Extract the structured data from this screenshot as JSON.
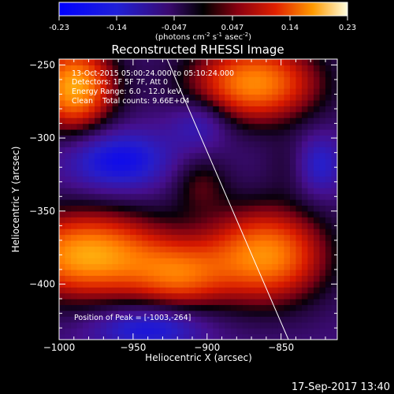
{
  "colorbar": {
    "ticks": [
      "-0.23",
      "-0.14",
      "-0.047",
      "0.047",
      "0.14",
      "0.23"
    ],
    "unit_main": "(photons cm",
    "unit_exp1": "-2",
    "unit_s": " s",
    "unit_exp2": "-1",
    "unit_asec": " asec",
    "unit_exp3": "-2",
    "unit_close": ")"
  },
  "annotations": {
    "line1": "13-Oct-2015 05:00:24.000 to 05:10:24.000",
    "line2": "Detectors: 1F 5F 7F, Att 0",
    "line3": "Energy Range: 6.0 - 12.0 keV",
    "line4": "Clean    Total counts: 9.66E+04",
    "peak": "Position of Peak = [-1003,-264]"
  },
  "footer": {
    "timestamp": "17-Sep-2017 13:40"
  },
  "chart_data": {
    "type": "heatmap",
    "title": "Reconstructed RHESSI Image",
    "xlabel": "Heliocentric X (arcsec)",
    "ylabel": "Heliocentric Y (arcsec)",
    "xlim": [
      -1000,
      -812
    ],
    "ylim": [
      -438,
      -246
    ],
    "x_ticks": [
      -1000,
      -950,
      -900,
      -850
    ],
    "x_tick_labels": [
      "−1000",
      "−950",
      "−900",
      "−850"
    ],
    "y_ticks": [
      -250,
      -300,
      -350,
      -400
    ],
    "y_tick_labels": [
      "−250",
      "−300",
      "−350",
      "−400"
    ],
    "colorscale_range": [
      -0.23,
      0.23
    ],
    "limb_line": [
      [
        -927,
        -246
      ],
      [
        -845,
        -438
      ]
    ],
    "sources": [
      {
        "x": -990,
        "y": -265,
        "amp": 0.23,
        "sx": 20,
        "sy": 22
      },
      {
        "x": -868,
        "y": -262,
        "amp": 0.21,
        "sx": 32,
        "sy": 20
      },
      {
        "x": -980,
        "y": -380,
        "amp": 0.23,
        "sx": 40,
        "sy": 22
      },
      {
        "x": -860,
        "y": -380,
        "amp": 0.21,
        "sx": 30,
        "sy": 24
      },
      {
        "x": -918,
        "y": -395,
        "amp": 0.12,
        "sx": 22,
        "sy": 16
      },
      {
        "x": -830,
        "y": -318,
        "amp": 0.1,
        "sx": 16,
        "sy": 14
      },
      {
        "x": -905,
        "y": -330,
        "amp": 0.07,
        "sx": 14,
        "sy": 14
      }
    ],
    "negative_regions": [
      {
        "x": -960,
        "y": -315,
        "amp": -0.14,
        "sx": 24,
        "sy": 14
      },
      {
        "x": -825,
        "y": -318,
        "amp": -0.18,
        "sx": 12,
        "sy": 14
      },
      {
        "x": -940,
        "y": -430,
        "amp": -0.12,
        "sx": 25,
        "sy": 10
      },
      {
        "x": -905,
        "y": -290,
        "amp": -0.08,
        "sx": 14,
        "sy": 12
      }
    ],
    "background": -0.06,
    "peak_position": [
      -1003,
      -264
    ]
  }
}
